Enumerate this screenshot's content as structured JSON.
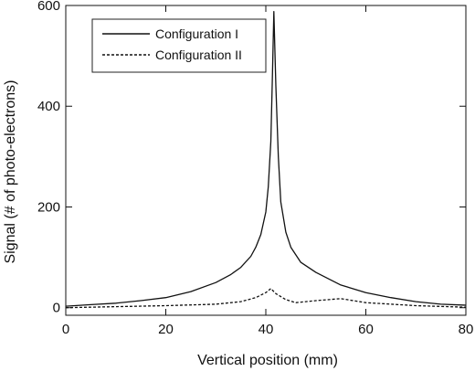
{
  "chart_data": {
    "type": "line",
    "title": "",
    "xlabel": "Vertical position (mm)",
    "ylabel": "Signal (# of photo-electrons)",
    "xlim": [
      0,
      80
    ],
    "ylim": [
      -15,
      600
    ],
    "xticks": [
      0,
      20,
      40,
      60,
      80
    ],
    "yticks": [
      0,
      200,
      400,
      600
    ],
    "grid": false,
    "legend_position": "top-left",
    "series": [
      {
        "name": "Configuration I",
        "style": "solid",
        "x": [
          0,
          5,
          10,
          15,
          20,
          25,
          30,
          33,
          35,
          37,
          38,
          39,
          40,
          40.5,
          41,
          41.3,
          41.6,
          42,
          42.5,
          43,
          44,
          45,
          47,
          50,
          55,
          60,
          65,
          70,
          75,
          80
        ],
        "values": [
          3,
          6,
          9,
          14,
          20,
          32,
          50,
          66,
          80,
          102,
          120,
          145,
          190,
          240,
          330,
          450,
          588,
          440,
          300,
          210,
          150,
          120,
          90,
          70,
          45,
          30,
          20,
          12,
          7,
          5
        ]
      },
      {
        "name": "Configuration II",
        "style": "dashed",
        "x": [
          0,
          10,
          20,
          30,
          35,
          38,
          40,
          41,
          42,
          44,
          46,
          50,
          55,
          60,
          70,
          80
        ],
        "values": [
          0,
          2,
          4,
          7,
          12,
          20,
          30,
          38,
          28,
          16,
          10,
          14,
          18,
          10,
          4,
          1
        ]
      }
    ]
  }
}
